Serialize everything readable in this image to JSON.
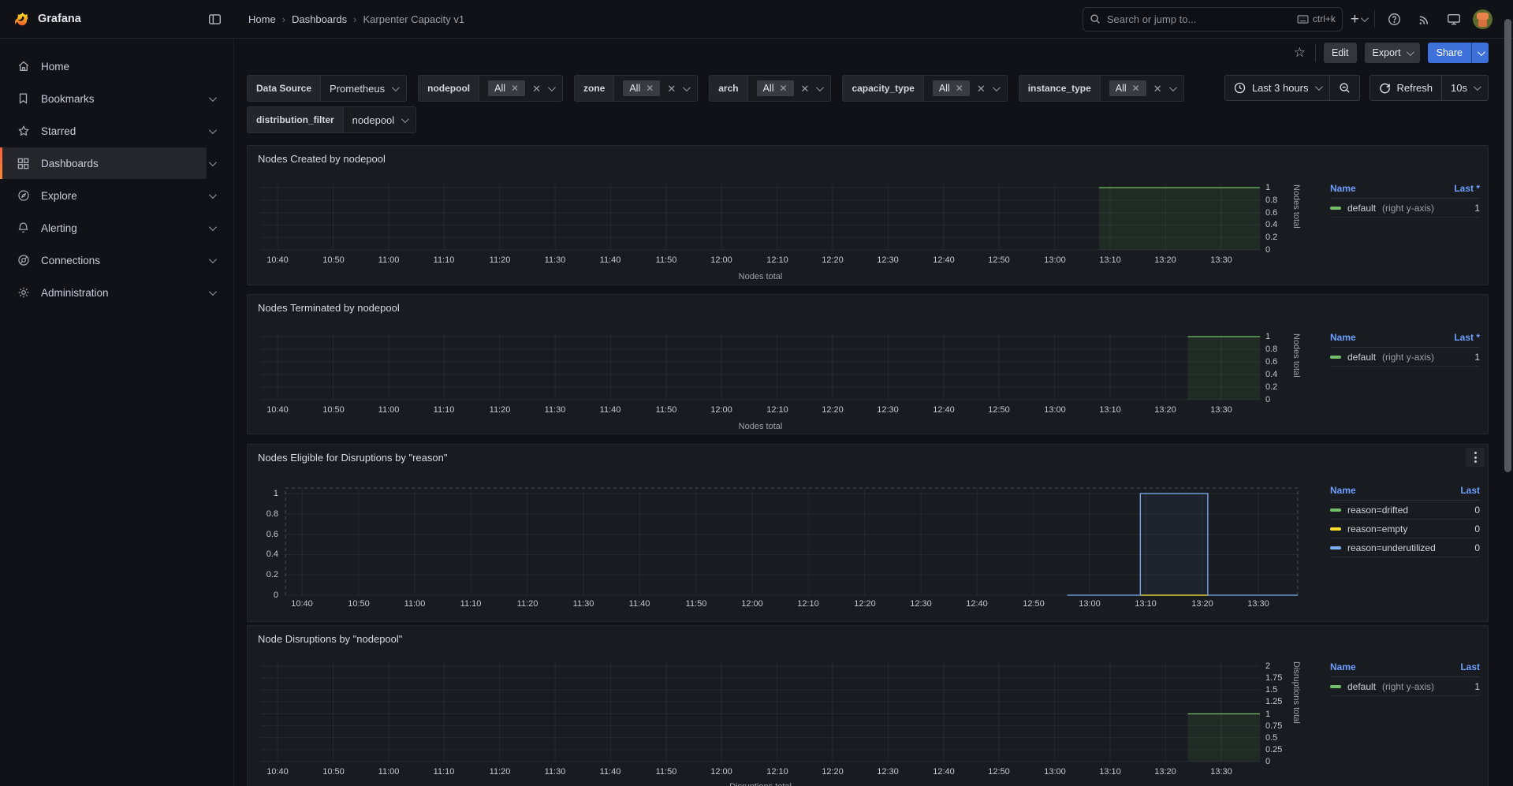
{
  "nav": {
    "brand": "Grafana",
    "breadcrumbs": [
      "Home",
      "Dashboards",
      "Karpenter Capacity v1"
    ],
    "search": {
      "placeholder": "Search or jump to...",
      "shortcut": "ctrl+k"
    }
  },
  "sidebar": {
    "items": [
      {
        "label": "Home",
        "icon": "home-icon",
        "expandable": false,
        "active": false
      },
      {
        "label": "Bookmarks",
        "icon": "bookmark-icon",
        "expandable": true,
        "active": false
      },
      {
        "label": "Starred",
        "icon": "star-icon",
        "expandable": true,
        "active": false
      },
      {
        "label": "Dashboards",
        "icon": "dashboards-grid-icon",
        "expandable": true,
        "active": true
      },
      {
        "label": "Explore",
        "icon": "compass-icon",
        "expandable": true,
        "active": false
      },
      {
        "label": "Alerting",
        "icon": "bell-icon",
        "expandable": true,
        "active": false
      },
      {
        "label": "Connections",
        "icon": "plug-icon",
        "expandable": true,
        "active": false
      },
      {
        "label": "Administration",
        "icon": "gear-icon",
        "expandable": true,
        "active": false
      }
    ]
  },
  "toolbar": {
    "edit_label": "Edit",
    "export_label": "Export",
    "share_label": "Share"
  },
  "filters": {
    "datasource": {
      "label": "Data Source",
      "value": "Prometheus"
    },
    "vars": [
      {
        "label": "nodepool",
        "value": "All"
      },
      {
        "label": "zone",
        "value": "All"
      },
      {
        "label": "arch",
        "value": "All"
      },
      {
        "label": "capacity_type",
        "value": "All"
      },
      {
        "label": "instance_type",
        "value": "All"
      }
    ],
    "distribution": {
      "label": "distribution_filter",
      "value": "nodepool"
    },
    "time_range": "Last 3 hours",
    "refresh_label": "Refresh",
    "refresh_interval": "10s"
  },
  "colors": {
    "green": "#73bf69",
    "yellow": "#fade2a",
    "blue": "#7eb0f7",
    "accent_blue": "#6e9fff",
    "share_blue": "#3d71d9"
  },
  "chart_data": [
    {
      "type": "line",
      "title": "Nodes Created by nodepool",
      "axis_side": "right",
      "x_ticks": [
        "10:40",
        "10:50",
        "11:00",
        "11:10",
        "11:20",
        "11:30",
        "11:40",
        "11:50",
        "12:00",
        "12:10",
        "12:20",
        "12:30",
        "12:40",
        "12:50",
        "13:00",
        "13:10",
        "13:20",
        "13:30"
      ],
      "x_range": [
        "10:37",
        "13:37"
      ],
      "y_ticks": [
        "1",
        "0.8",
        "0.6",
        "0.4",
        "0.2",
        "0"
      ],
      "ylim": [
        0,
        1.05
      ],
      "xlabel": "Nodes total",
      "ylabel": "Nodes total",
      "series": [
        {
          "name": "default",
          "color": "#73bf69",
          "fill": "rgba(115,191,105,0.10)",
          "fill_to_zero": true,
          "points": [
            [
              "13:08",
              1
            ],
            [
              "13:37",
              1
            ]
          ]
        }
      ],
      "legend": {
        "columns": [
          "Name",
          "Last *"
        ],
        "rows": [
          {
            "color": "#73bf69",
            "label": "default",
            "suffix": "(right y-axis)",
            "value": "1"
          }
        ]
      }
    },
    {
      "type": "line",
      "title": "Nodes Terminated by nodepool",
      "axis_side": "right",
      "x_ticks": [
        "10:40",
        "10:50",
        "11:00",
        "11:10",
        "11:20",
        "11:30",
        "11:40",
        "11:50",
        "12:00",
        "12:10",
        "12:20",
        "12:30",
        "12:40",
        "12:50",
        "13:00",
        "13:10",
        "13:20",
        "13:30"
      ],
      "x_range": [
        "10:37",
        "13:37"
      ],
      "y_ticks": [
        "1",
        "0.8",
        "0.6",
        "0.4",
        "0.2",
        "0"
      ],
      "ylim": [
        0,
        1.05
      ],
      "xlabel": "Nodes total",
      "ylabel": "Nodes total",
      "series": [
        {
          "name": "default",
          "color": "#73bf69",
          "fill": "rgba(115,191,105,0.10)",
          "fill_to_zero": true,
          "points": [
            [
              "13:24",
              1
            ],
            [
              "13:37",
              1
            ]
          ]
        }
      ],
      "legend": {
        "columns": [
          "Name",
          "Last *"
        ],
        "rows": [
          {
            "color": "#73bf69",
            "label": "default",
            "suffix": "(right y-axis)",
            "value": "1"
          }
        ]
      }
    },
    {
      "type": "line",
      "title": "Nodes Eligible for Disruptions by \"reason\"",
      "axis_side": "left",
      "has_menu": true,
      "dashed_frame": true,
      "x_ticks": [
        "10:40",
        "10:50",
        "11:00",
        "11:10",
        "11:20",
        "11:30",
        "11:40",
        "11:50",
        "12:00",
        "12:10",
        "12:20",
        "12:30",
        "12:40",
        "12:50",
        "13:00",
        "13:10",
        "13:20",
        "13:30"
      ],
      "x_range": [
        "10:37",
        "13:37"
      ],
      "y_ticks": [
        "1",
        "0.8",
        "0.6",
        "0.4",
        "0.2",
        "0"
      ],
      "ylim": [
        0,
        1.054
      ],
      "xlabel": "",
      "ylabel": "",
      "series": [
        {
          "name": "reason=drifted",
          "color": "#73bf69",
          "points": [
            [
              "13:09",
              0
            ],
            [
              "13:21",
              0
            ]
          ]
        },
        {
          "name": "reason=empty",
          "color": "#fade2a",
          "points": [
            [
              "13:09",
              0
            ],
            [
              "13:21",
              0
            ]
          ]
        },
        {
          "name": "reason=underutilized",
          "color": "#7eb0f7",
          "fill": "rgba(110,159,255,0.07)",
          "fill_to_zero": true,
          "points": [
            [
              "12:56",
              0
            ],
            [
              "13:09",
              0
            ],
            [
              "13:09",
              1
            ],
            [
              "13:21",
              1
            ],
            [
              "13:21",
              0
            ],
            [
              "13:37",
              0
            ]
          ]
        }
      ],
      "legend": {
        "columns": [
          "Name",
          "Last"
        ],
        "rows": [
          {
            "color": "#73bf69",
            "label": "reason=drifted",
            "suffix": "",
            "value": "0"
          },
          {
            "color": "#fade2a",
            "label": "reason=empty",
            "suffix": "",
            "value": "0"
          },
          {
            "color": "#7eb0f7",
            "label": "reason=underutilized",
            "suffix": "",
            "value": "0"
          }
        ]
      }
    },
    {
      "type": "line",
      "title": "Node Disruptions by \"nodepool\"",
      "axis_side": "right",
      "x_ticks": [
        "10:40",
        "10:50",
        "11:00",
        "11:10",
        "11:20",
        "11:30",
        "11:40",
        "11:50",
        "12:00",
        "12:10",
        "12:20",
        "12:30",
        "12:40",
        "12:50",
        "13:00",
        "13:10",
        "13:20",
        "13:30"
      ],
      "x_range": [
        "10:37",
        "13:37"
      ],
      "y_ticks": [
        "2",
        "1.75",
        "1.5",
        "1.25",
        "1",
        "0.75",
        "0.5",
        "0.25",
        "0"
      ],
      "ylim": [
        0,
        2.1
      ],
      "xlabel": "Disruptions total",
      "ylabel": "Disruptions total",
      "series": [
        {
          "name": "default",
          "color": "#73bf69",
          "fill": "rgba(115,191,105,0.10)",
          "fill_to_zero": true,
          "points": [
            [
              "13:24",
              1
            ],
            [
              "13:37",
              1
            ]
          ]
        }
      ],
      "legend": {
        "columns": [
          "Name",
          "Last"
        ],
        "rows": [
          {
            "color": "#73bf69",
            "label": "default",
            "suffix": "(right y-axis)",
            "value": "1"
          }
        ]
      }
    }
  ]
}
